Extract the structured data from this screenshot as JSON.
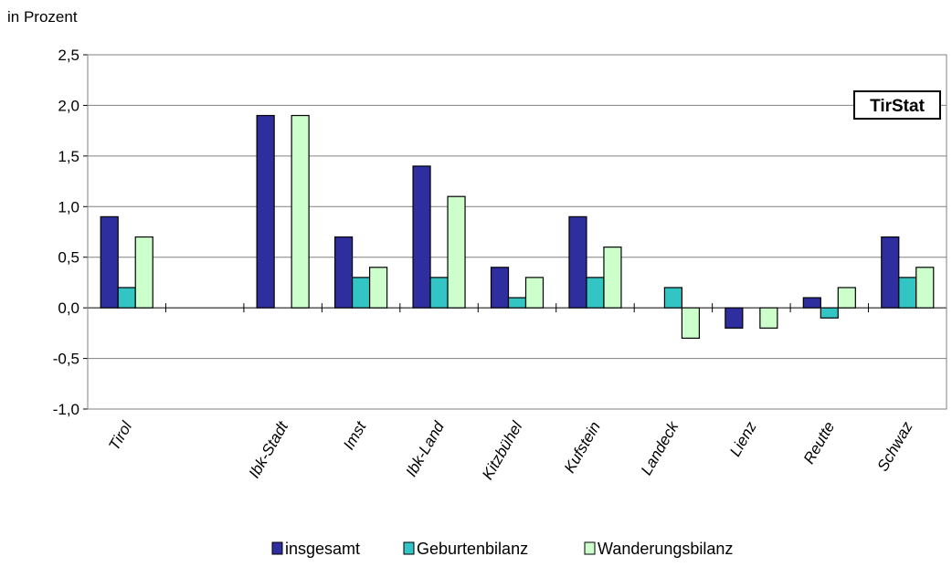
{
  "chart_data": {
    "type": "bar",
    "ylabel": "in Prozent",
    "ylim": [
      -1.0,
      2.5
    ],
    "yticks": [
      -1.0,
      -0.5,
      0.0,
      0.5,
      1.0,
      1.5,
      2.0,
      2.5
    ],
    "ytick_labels": [
      "-1,0",
      "-0,5",
      "0,0",
      "0,5",
      "1,0",
      "1,5",
      "2,0",
      "2,5"
    ],
    "grid": true,
    "legend_position": "bottom",
    "categories": [
      "Tirol",
      "",
      "Ibk-Stadt",
      "Imst",
      "Ibk-Land",
      "Kitzbühel",
      "Kufstein",
      "Landeck",
      "Lienz",
      "Reutte",
      "Schwaz"
    ],
    "series": [
      {
        "name": "insgesamt",
        "color": "#2e2e9e",
        "values": [
          0.9,
          null,
          1.9,
          0.7,
          1.4,
          0.4,
          0.9,
          0.0,
          -0.2,
          0.1,
          0.7
        ]
      },
      {
        "name": "Geburtenbilanz",
        "color": "#33c4c4",
        "values": [
          0.2,
          null,
          0.0,
          0.3,
          0.3,
          0.1,
          0.3,
          0.2,
          0.0,
          -0.1,
          0.3
        ]
      },
      {
        "name": "Wanderungsbilanz",
        "color": "#ccffcc",
        "values": [
          0.7,
          null,
          1.9,
          0.4,
          1.1,
          0.3,
          0.6,
          -0.3,
          -0.2,
          0.2,
          0.4
        ]
      }
    ],
    "badge": "TirStat"
  }
}
